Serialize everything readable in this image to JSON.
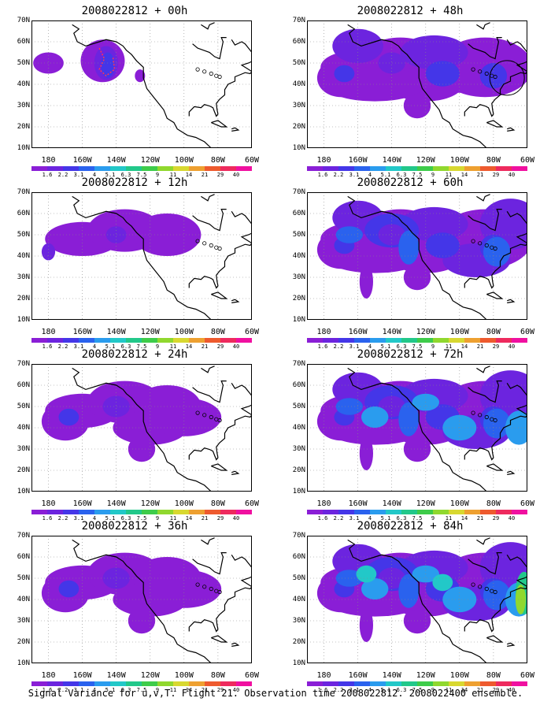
{
  "panels": [
    {
      "title": "2008022812 + 00h",
      "level": 0
    },
    {
      "title": "2008022812 + 48h",
      "level": 3
    },
    {
      "title": "2008022812 + 12h",
      "level": 1
    },
    {
      "title": "2008022812 + 60h",
      "level": 4
    },
    {
      "title": "2008022812 + 24h",
      "level": 2
    },
    {
      "title": "2008022812 + 72h",
      "level": 5
    },
    {
      "title": "2008022812 + 36h",
      "level": 2
    },
    {
      "title": "2008022812 + 84h",
      "level": 6
    }
  ],
  "lat_labels": [
    "70N",
    "60N",
    "50N",
    "40N",
    "30N",
    "20N",
    "10N"
  ],
  "lon_labels": [
    "180",
    "160W",
    "140W",
    "120W",
    "100W",
    "80W",
    "60W"
  ],
  "colorbar": {
    "labels": [
      "1.6",
      "2.2",
      "3.1",
      "4",
      "5.1",
      "6.3",
      "7.5",
      "9",
      "11",
      "14",
      "21",
      "29",
      "40"
    ],
    "colors": [
      "#8a1ed6",
      "#6c24df",
      "#4436e8",
      "#2a62ee",
      "#2a9cee",
      "#22c8c8",
      "#22c88a",
      "#3ecc4a",
      "#90d82e",
      "#d8d830",
      "#eea030",
      "#ee5a2e",
      "#ee2a5e",
      "#f010a0"
    ]
  },
  "footer": "Signal Variance for u,v,T. Flight 21. Observation time 2008022812. 2008022400 ensemble."
}
